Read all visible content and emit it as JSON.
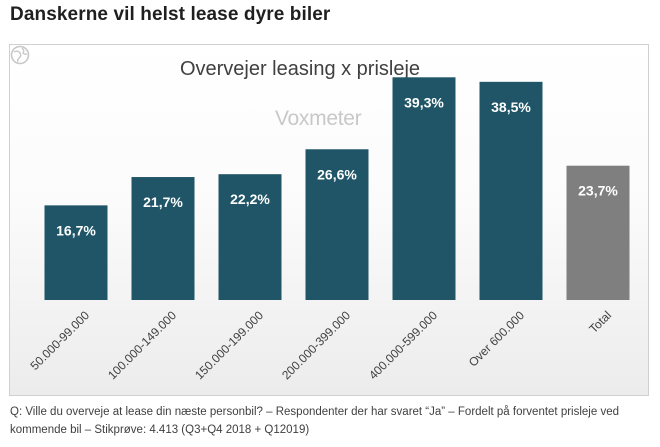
{
  "headline": "Danskerne vil helst lease dyre biler",
  "caption": "Q: Ville du overveje at lease din næste personbil? – Respondenter der har svaret “Ja” – Fordelt på forventet prisleje ved kommende bil – Stikprøve: 4.413 (Q3+Q4 2018 + Q12019)",
  "logo": {
    "text": "Voxmeter",
    "icon": "globe-icon"
  },
  "colors": {
    "bar": "#1f5567",
    "total_bar": "#7f7f7f",
    "label": "#ffffff",
    "title": "#404040",
    "tick": "#404040"
  },
  "chart_data": {
    "type": "bar",
    "title": "Overvejer leasing x prisleje",
    "xlabel": "",
    "ylabel": "",
    "ylim": [
      0,
      45
    ],
    "grid": false,
    "categories": [
      "50.000-99.000",
      "100.000-149.000",
      "150.000-199.000",
      "200.000-399.000",
      "400.000-599.000",
      "Over 600.000",
      "Total"
    ],
    "values": [
      16.7,
      21.7,
      22.2,
      26.6,
      39.3,
      38.5,
      23.7
    ],
    "data_labels": [
      "16,7%",
      "21,7%",
      "22,2%",
      "26,6%",
      "39,3%",
      "38,5%",
      "23,7%"
    ],
    "highlight_last": true
  }
}
